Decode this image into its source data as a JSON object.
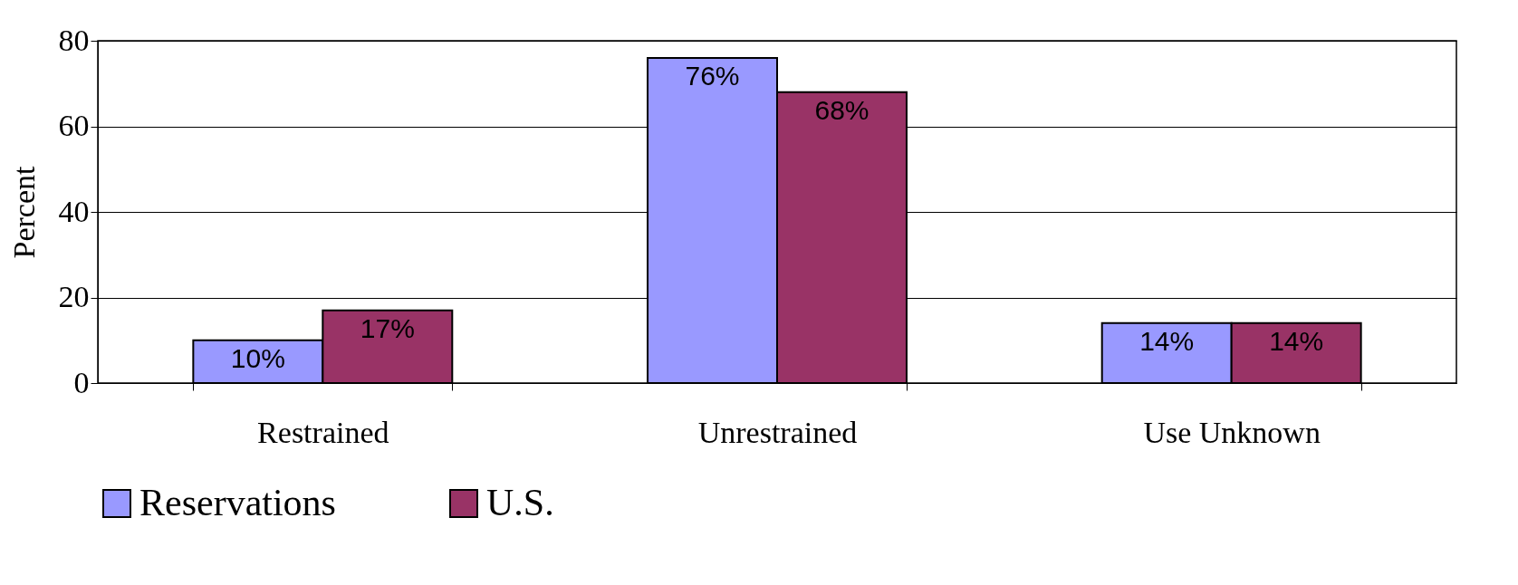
{
  "chart_data": {
    "type": "bar",
    "ylabel": "Percent",
    "categories": [
      "Restrained",
      "Unrestrained",
      "Use Unknown"
    ],
    "series": [
      {
        "name": "Reservations",
        "color": "#9999ff",
        "values": [
          10,
          76,
          14
        ],
        "value_labels": [
          "10%",
          "76%",
          "14%"
        ]
      },
      {
        "name": "U.S.",
        "color": "#993366",
        "values": [
          17,
          68,
          14
        ],
        "value_labels": [
          "17%",
          "68%",
          "14%"
        ]
      }
    ],
    "ylim": [
      0,
      80
    ],
    "yticks": [
      0,
      20,
      40,
      60,
      80
    ],
    "grid": "y",
    "legend": "bottom"
  }
}
